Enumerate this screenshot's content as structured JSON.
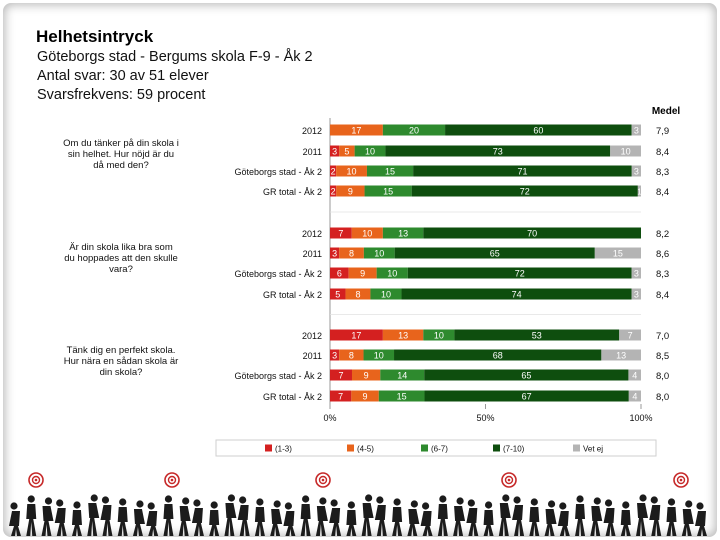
{
  "header": {
    "title": "Helhetsintryck",
    "school": "Göteborgs stad - Bergums skola F-9 - Åk 2",
    "responses": "Antal svar: 30 av 51 elever",
    "response_rate": "Svarsfrekvens: 59 procent"
  },
  "chart_data": {
    "type": "bar",
    "orientation": "horizontal",
    "stacked": true,
    "mean_header": "Medel",
    "xlim": [
      0,
      100
    ],
    "x_ticks": [
      "0%",
      "50%",
      "100%"
    ],
    "legend": [
      "(1-3)",
      "(4-5)",
      "(6-7)",
      "(7-10)",
      "Vet ej"
    ],
    "colors": {
      "c1_3": "#d42020",
      "c4_5": "#e8641c",
      "c6_7": "#2e8a2e",
      "c7_10": "#0e4e0e",
      "vet_ej": "#b4b4b4"
    },
    "questions": [
      {
        "text": "Om du tänker på din skola i sin helhet. Hur nöjd är du då med den?",
        "rows": [
          {
            "label": "2012",
            "values": [
              0,
              17,
              20,
              60,
              3
            ],
            "mean": "7,9"
          },
          {
            "label": "2011",
            "values": [
              3,
              5,
              10,
              73,
              10
            ],
            "mean": "8,4"
          },
          {
            "label": "Göteborgs stad - Åk 2",
            "values": [
              2,
              10,
              15,
              71,
              3
            ],
            "mean": "8,3"
          },
          {
            "label": "GR total - Åk 2",
            "values": [
              2,
              9,
              15,
              72,
              1
            ],
            "mean": "8,4"
          }
        ]
      },
      {
        "text": "Är din skola lika bra som du hoppades att den skulle vara?",
        "rows": [
          {
            "label": "2012",
            "values": [
              7,
              10,
              13,
              70,
              0
            ],
            "mean": "8,2"
          },
          {
            "label": "2011",
            "values": [
              3,
              8,
              10,
              65,
              15
            ],
            "mean": "8,6"
          },
          {
            "label": "Göteborgs stad - Åk 2",
            "values": [
              6,
              9,
              10,
              72,
              3
            ],
            "mean": "8,3"
          },
          {
            "label": "GR total - Åk 2",
            "values": [
              5,
              8,
              10,
              74,
              3
            ],
            "mean": "8,4"
          }
        ]
      },
      {
        "text": "Tänk dig en perfekt skola. Hur nära en sådan skola är din skola?",
        "rows": [
          {
            "label": "2012",
            "values": [
              17,
              13,
              10,
              53,
              7
            ],
            "mean": "7,0"
          },
          {
            "label": "2011",
            "values": [
              3,
              8,
              10,
              68,
              13
            ],
            "mean": "8,5"
          },
          {
            "label": "Göteborgs stad - Åk 2",
            "values": [
              7,
              9,
              14,
              65,
              4
            ],
            "mean": "8,0"
          },
          {
            "label": "GR total - Åk 2",
            "values": [
              7,
              9,
              15,
              67,
              4
            ],
            "mean": "8,0"
          }
        ]
      }
    ]
  }
}
